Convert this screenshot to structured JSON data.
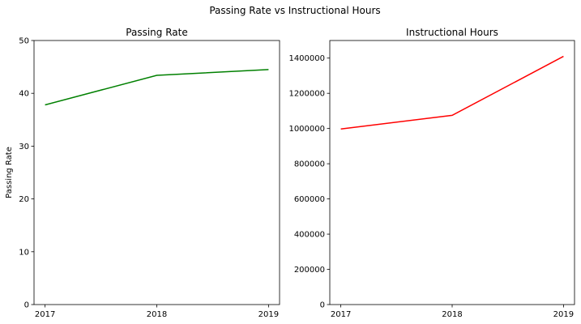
{
  "figure": {
    "suptitle": "Passing Rate vs Instructional Hours"
  },
  "chart_data": [
    {
      "type": "line",
      "title": "Passing Rate",
      "xlabel": "",
      "ylabel": "Passing Rate",
      "x": [
        "2017",
        "2018",
        "2019"
      ],
      "series": [
        {
          "values": [
            37.8,
            43.4,
            44.5
          ],
          "color": "#008000"
        }
      ],
      "ylim": [
        0,
        50
      ],
      "yticks": [
        0,
        10,
        20,
        30,
        40,
        50
      ],
      "grid": false
    },
    {
      "type": "line",
      "title": "Instructional Hours",
      "xlabel": "",
      "ylabel": "",
      "x": [
        "2017",
        "2018",
        "2019"
      ],
      "series": [
        {
          "values": [
            997000,
            1075000,
            1410000
          ],
          "color": "#ff0000"
        }
      ],
      "ylim": [
        0,
        1500000
      ],
      "yticks": [
        0,
        200000,
        400000,
        600000,
        800000,
        1000000,
        1200000,
        1400000
      ],
      "grid": false
    }
  ]
}
